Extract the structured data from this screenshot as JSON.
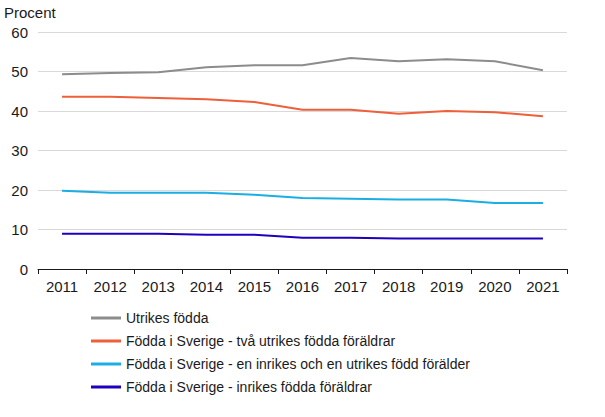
{
  "chart_data": {
    "type": "line",
    "y_label": "Procent",
    "categories": [
      "2011",
      "2012",
      "2013",
      "2014",
      "2015",
      "2016",
      "2017",
      "2018",
      "2019",
      "2020",
      "2021"
    ],
    "series": [
      {
        "name": "Utrikes födda",
        "color": "#8c8c8c",
        "values": [
          49.3,
          49.6,
          49.8,
          51.1,
          51.6,
          51.6,
          53.4,
          52.6,
          53.1,
          52.6,
          50.3
        ]
      },
      {
        "name": "Födda i Sverige - två utrikes födda föräldrar",
        "color": "#ee5f3a",
        "values": [
          43.6,
          43.6,
          43.3,
          43.0,
          42.3,
          40.3,
          40.3,
          39.3,
          40.0,
          39.7,
          38.7
        ]
      },
      {
        "name": "Födda i Sverige - en inrikes och en utrikes född förälder",
        "color": "#1aaee4",
        "values": [
          19.8,
          19.3,
          19.3,
          19.3,
          18.8,
          18.0,
          17.8,
          17.6,
          17.6,
          16.7,
          16.7
        ]
      },
      {
        "name": "Födda i Sverige - inrikes födda föräldrar",
        "color": "#1e00be",
        "values": [
          8.9,
          8.9,
          8.9,
          8.7,
          8.7,
          7.9,
          7.9,
          7.7,
          7.7,
          7.7,
          7.7
        ]
      }
    ],
    "ylim": [
      0,
      60
    ],
    "yticks": [
      0,
      10,
      20,
      30,
      40,
      50,
      60
    ],
    "grid": true,
    "legend": "bottom",
    "marker": "none"
  }
}
